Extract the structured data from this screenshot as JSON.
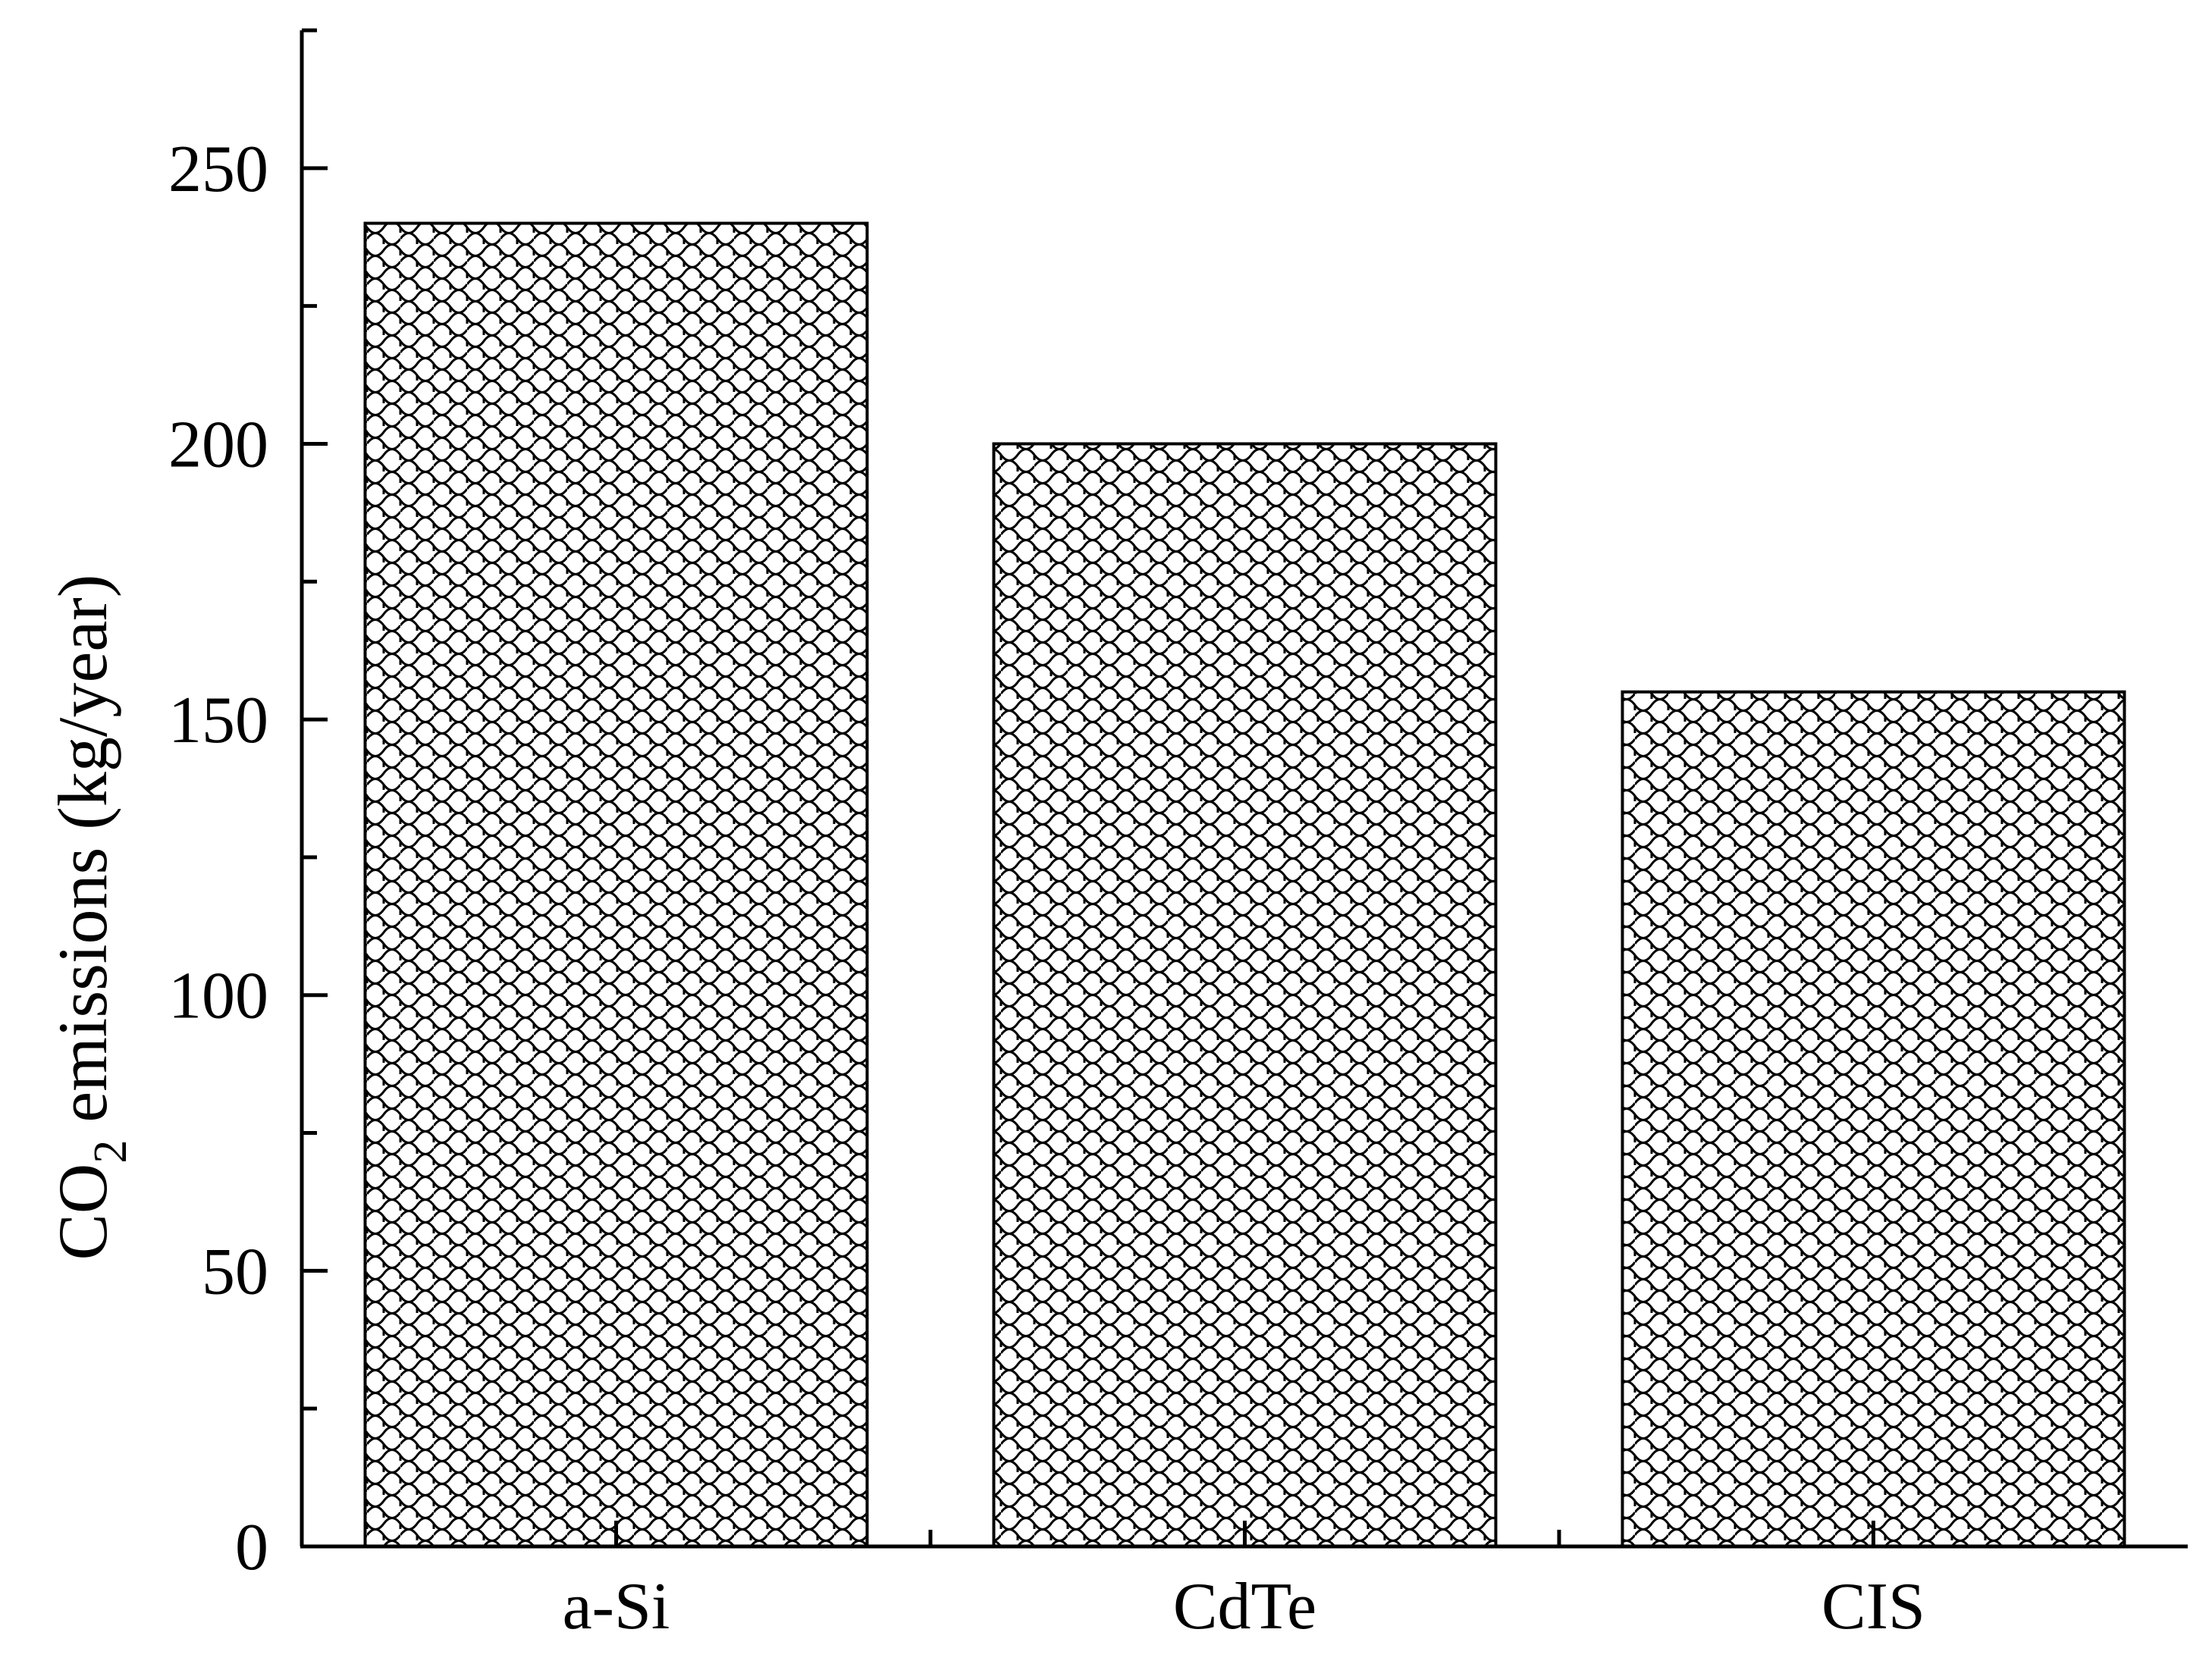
{
  "chart_data": {
    "type": "bar",
    "title": "",
    "categories": [
      "a-Si",
      "CdTe",
      "CIS"
    ],
    "values": [
      240,
      200,
      155
    ],
    "ylabel": {
      "main": "CO",
      "sub": "2",
      "rest": " emissions (kg/year)"
    },
    "xlabel": "",
    "ylim": [
      0,
      275
    ],
    "yticks": [
      0,
      50,
      100,
      150,
      200,
      250
    ],
    "grid": false,
    "bar_fill": "crosshatch-scale-pattern",
    "colors": {
      "bar_stroke": "#000000",
      "bar_pattern": "#000000",
      "background": "#ffffff"
    }
  }
}
